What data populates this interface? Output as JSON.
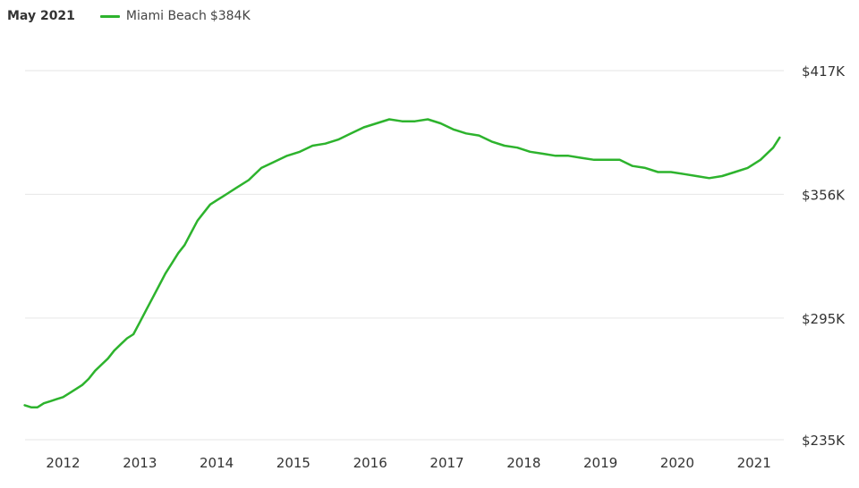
{
  "header": {
    "date_label": "May 2021",
    "series_label": "Miami Beach",
    "series_value": "$384K"
  },
  "colors": {
    "series": "#2db32d",
    "grid": "#e6e6e6"
  },
  "chart_data": {
    "type": "line",
    "title": "",
    "xlabel": "",
    "ylabel": "",
    "ylim": [
      235,
      417
    ],
    "ytick_values": [
      235,
      295,
      356,
      417
    ],
    "ytick_labels": [
      "$235K",
      "$295K",
      "$356K",
      "$417K"
    ],
    "xtick_labels": [
      "2012",
      "2013",
      "2014",
      "2015",
      "2016",
      "2017",
      "2018",
      "2019",
      "2020",
      "2021"
    ],
    "grid": true,
    "legend": "top-left",
    "series": [
      {
        "name": "Miami Beach",
        "color": "#2db32d",
        "x": [
          "2011-07",
          "2011-08",
          "2011-09",
          "2011-10",
          "2011-11",
          "2011-12",
          "2012-01",
          "2012-02",
          "2012-03",
          "2012-04",
          "2012-05",
          "2012-06",
          "2012-07",
          "2012-08",
          "2012-09",
          "2012-10",
          "2012-11",
          "2012-12",
          "2013-01",
          "2013-02",
          "2013-03",
          "2013-04",
          "2013-05",
          "2013-06",
          "2013-07",
          "2013-08",
          "2013-09",
          "2013-10",
          "2013-11",
          "2013-12",
          "2014-01",
          "2014-02",
          "2014-04",
          "2014-06",
          "2014-08",
          "2014-10",
          "2014-12",
          "2015-02",
          "2015-04",
          "2015-06",
          "2015-08",
          "2015-10",
          "2015-12",
          "2016-02",
          "2016-04",
          "2016-06",
          "2016-08",
          "2016-10",
          "2016-12",
          "2017-02",
          "2017-04",
          "2017-06",
          "2017-08",
          "2017-10",
          "2017-12",
          "2018-02",
          "2018-04",
          "2018-06",
          "2018-08",
          "2018-10",
          "2018-12",
          "2019-02",
          "2019-04",
          "2019-06",
          "2019-08",
          "2019-10",
          "2019-12",
          "2020-02",
          "2020-04",
          "2020-06",
          "2020-08",
          "2020-10",
          "2020-12",
          "2021-02",
          "2021-04",
          "2021-05"
        ],
        "values": [
          252,
          251,
          251,
          253,
          254,
          255,
          256,
          258,
          260,
          262,
          265,
          269,
          272,
          275,
          279,
          282,
          285,
          287,
          293,
          299,
          305,
          311,
          317,
          322,
          327,
          331,
          337,
          343,
          347,
          351,
          353,
          355,
          359,
          363,
          369,
          372,
          375,
          377,
          380,
          381,
          383,
          386,
          389,
          391,
          393,
          392,
          392,
          393,
          391,
          388,
          386,
          385,
          382,
          380,
          379,
          377,
          376,
          375,
          375,
          374,
          373,
          373,
          373,
          370,
          369,
          367,
          367,
          366,
          365,
          364,
          365,
          367,
          369,
          373,
          379,
          384
        ]
      }
    ]
  }
}
